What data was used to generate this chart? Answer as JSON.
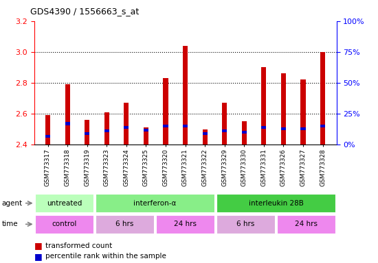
{
  "title": "GDS4390 / 1556663_s_at",
  "samples": [
    "GSM773317",
    "GSM773318",
    "GSM773319",
    "GSM773323",
    "GSM773324",
    "GSM773325",
    "GSM773320",
    "GSM773321",
    "GSM773322",
    "GSM773329",
    "GSM773330",
    "GSM773331",
    "GSM773326",
    "GSM773327",
    "GSM773328"
  ],
  "transformed_count": [
    2.59,
    2.79,
    2.56,
    2.61,
    2.67,
    2.51,
    2.83,
    3.04,
    2.5,
    2.67,
    2.55,
    2.9,
    2.86,
    2.82,
    3.0
  ],
  "percentile_rank": [
    7,
    17,
    9,
    11,
    14,
    12,
    15,
    15,
    9,
    11,
    10,
    14,
    13,
    13,
    15
  ],
  "ymin": 2.4,
  "ymax": 3.2,
  "yticks": [
    2.4,
    2.6,
    2.8,
    3.0,
    3.2
  ],
  "bar_color": "#cc0000",
  "blue_color": "#0000cc",
  "bar_width": 0.25,
  "agent_groups": [
    {
      "label": "untreated",
      "start": 0,
      "end": 3,
      "color": "#bbffbb"
    },
    {
      "label": "interferon-α",
      "start": 3,
      "end": 9,
      "color": "#88ee88"
    },
    {
      "label": "interleukin 28B",
      "start": 9,
      "end": 15,
      "color": "#44cc44"
    }
  ],
  "time_groups": [
    {
      "label": "control",
      "start": 0,
      "end": 3,
      "color": "#ee88ee"
    },
    {
      "label": "6 hrs",
      "start": 3,
      "end": 6,
      "color": "#ddaadd"
    },
    {
      "label": "24 hrs",
      "start": 6,
      "end": 9,
      "color": "#ee88ee"
    },
    {
      "label": "6 hrs",
      "start": 9,
      "end": 12,
      "color": "#ddaadd"
    },
    {
      "label": "24 hrs",
      "start": 12,
      "end": 15,
      "color": "#ee88ee"
    }
  ]
}
